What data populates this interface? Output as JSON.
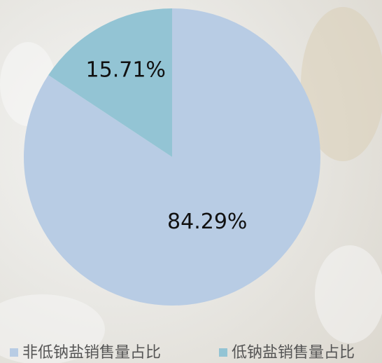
{
  "chart_data": {
    "type": "pie",
    "categories": [
      "非低钠盐销售量占比",
      "低钠盐销售量占比"
    ],
    "values": [
      84.29,
      15.71
    ],
    "value_labels": [
      "84.29%",
      "15.71%"
    ],
    "colors": [
      "#b8cce4",
      "#93c4d4"
    ],
    "legend": "bottom"
  }
}
